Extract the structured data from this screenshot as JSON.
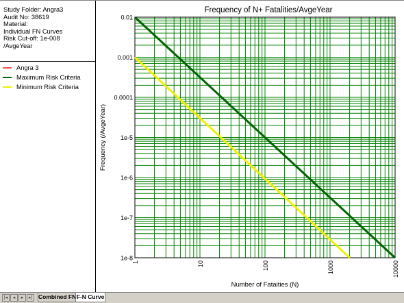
{
  "info": {
    "study_folder": "Study Folder: Angra3",
    "audit_no": "Audit No: 38619",
    "material": "Material:",
    "curves": "Individual FN Curves",
    "cutoff": "Risk Cut-off: 1e-008",
    "cutoff_unit": "/AvgeYear"
  },
  "legend": [
    {
      "label": "Angra 3",
      "color": "#ff5050"
    },
    {
      "label": "Maximum Risk Criteria",
      "color": "#006400"
    },
    {
      "label": "Minimum Risk Criteria",
      "color": "#f0f000"
    }
  ],
  "tabs": {
    "combined": "Combined FN",
    "fn_curve": "F-N Curve"
  },
  "nav_icons": [
    "first-sheet-icon",
    "prev-sheet-icon",
    "next-sheet-icon",
    "last-sheet-icon"
  ],
  "colors": {
    "grid": "#008000",
    "axis": "#000000"
  },
  "chart_data": {
    "type": "line",
    "title": "Frequency of N+ Fatalities/AvgeYear",
    "xlabel": "Number of Fataities (N)",
    "ylabel": "Frequency (/AvgeYear)",
    "x_scale": "log",
    "y_scale": "log",
    "xlim": [
      1,
      10000
    ],
    "ylim": [
      1e-08,
      0.01
    ],
    "grid": true,
    "x_ticks": [
      {
        "value": 1,
        "label": "1"
      },
      {
        "value": 10,
        "label": "10"
      },
      {
        "value": 100,
        "label": "100"
      },
      {
        "value": 1000,
        "label": "1000"
      },
      {
        "value": 10000,
        "label": "10000"
      }
    ],
    "y_ticks": [
      {
        "value": 0.01,
        "label": "0.01"
      },
      {
        "value": 0.001,
        "label": "0.001"
      },
      {
        "value": 0.0001,
        "label": "0.0001"
      },
      {
        "value": 1e-05,
        "label": "1e-5"
      },
      {
        "value": 1e-06,
        "label": "1e-6"
      },
      {
        "value": 1e-07,
        "label": "1e-7"
      },
      {
        "value": 1e-08,
        "label": "1e-8"
      }
    ],
    "series": [
      {
        "name": "Maximum Risk Criteria",
        "color": "#006400",
        "x": [
          1,
          10000
        ],
        "y": [
          0.01,
          1e-08
        ]
      },
      {
        "name": "Minimum Risk Criteria",
        "color": "#f0f000",
        "x": [
          1,
          2000
        ],
        "y": [
          0.001,
          1e-08
        ]
      }
    ]
  }
}
